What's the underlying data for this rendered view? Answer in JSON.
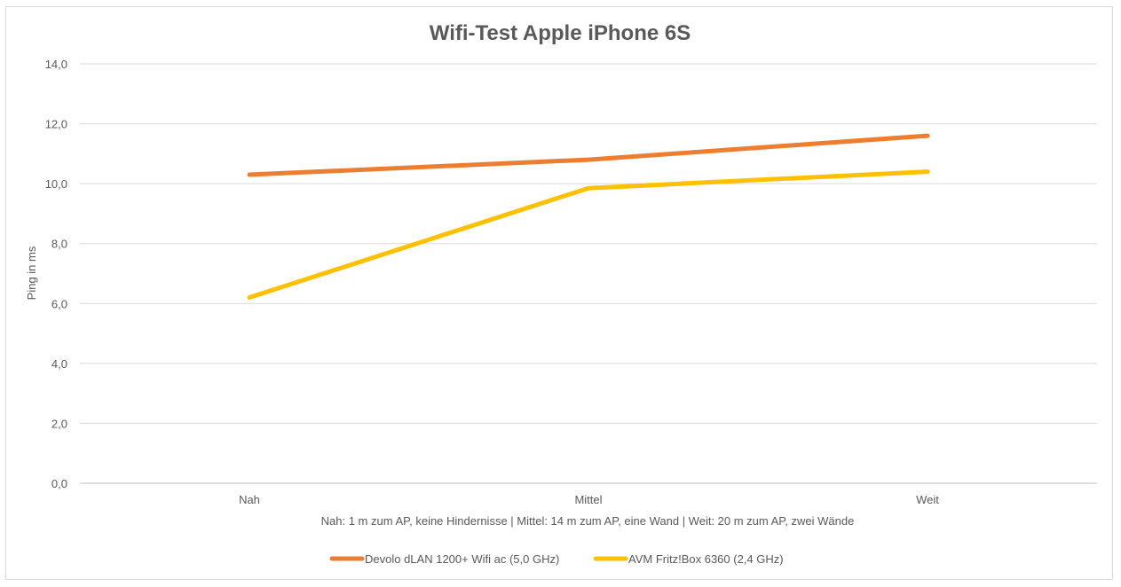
{
  "chart_data": {
    "type": "line",
    "title": "Wifi-Test Apple iPhone 6S",
    "xlabel": "Nah: 1 m zum AP, keine Hindernisse | Mittel: 14 m zum AP, eine Wand | Weit: 20 m zum AP, zwei Wände",
    "ylabel": "Ping in ms",
    "categories": [
      "Nah",
      "Mittel",
      "Weit"
    ],
    "ylim": [
      0,
      14
    ],
    "yticks": [
      "0,0",
      "2,0",
      "4,0",
      "6,0",
      "8,0",
      "10,0",
      "12,0",
      "14,0"
    ],
    "grid": true,
    "legend_position": "bottom",
    "series": [
      {
        "name": "Devolo dLAN 1200+ Wifi ac (5,0 GHz)",
        "color": "#ED7D31",
        "values": [
          10.3,
          10.8,
          11.6
        ]
      },
      {
        "name": "AVM Fritz!Box 6360 (2,4 GHz)",
        "color": "#FFC000",
        "values": [
          6.2,
          9.85,
          10.4
        ]
      }
    ]
  }
}
